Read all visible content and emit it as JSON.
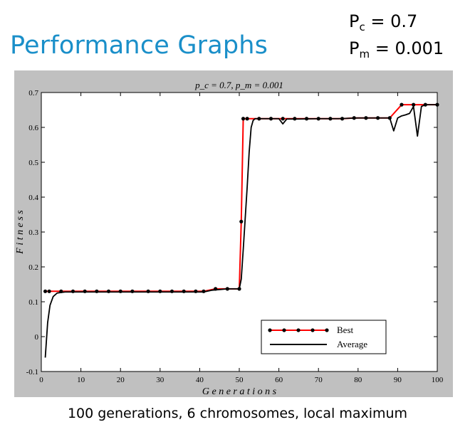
{
  "slide": {
    "title": "Performance Graphs",
    "params": [
      {
        "symbol": "P",
        "sub": "c",
        "rest": " = 0.7"
      },
      {
        "symbol": "P",
        "sub": "m",
        "rest": " = 0.001"
      }
    ],
    "caption": "100 generations, 6 chromosomes, local maximum"
  },
  "chart_data": {
    "type": "line",
    "title": "p_c = 0.7,  p_m = 0.001",
    "xlabel": "G e n e r a t i o n s",
    "ylabel": "F i t n e s s",
    "xlim": [
      0,
      100
    ],
    "ylim": [
      -0.1,
      0.7
    ],
    "xticks": [
      0,
      10,
      20,
      30,
      40,
      50,
      60,
      70,
      80,
      90,
      100
    ],
    "yticks": [
      -0.1,
      0,
      0.1,
      0.2,
      0.3,
      0.4,
      0.5,
      0.6,
      0.7
    ],
    "ytick_labels": [
      "-0.1",
      "0",
      "0.1",
      "0.2",
      "0.3",
      "0.4",
      "0.5",
      "0.6",
      "0.7"
    ],
    "grid": false,
    "legend_position": "bottom-right",
    "series": [
      {
        "name": "Best",
        "color": "#ff0000",
        "marker": "dot",
        "x": [
          1,
          2,
          5,
          8,
          11,
          14,
          17,
          20,
          23,
          27,
          30,
          33,
          36,
          39,
          41,
          44,
          47,
          50,
          50.5,
          51,
          52,
          55,
          58,
          61,
          64,
          67,
          70,
          73,
          76,
          79,
          82,
          85,
          88,
          91,
          94,
          97,
          100
        ],
        "y": [
          0.13,
          0.13,
          0.13,
          0.13,
          0.13,
          0.13,
          0.13,
          0.13,
          0.13,
          0.13,
          0.13,
          0.13,
          0.13,
          0.13,
          0.13,
          0.137,
          0.137,
          0.137,
          0.33,
          0.625,
          0.625,
          0.625,
          0.625,
          0.625,
          0.625,
          0.625,
          0.625,
          0.625,
          0.625,
          0.627,
          0.627,
          0.627,
          0.627,
          0.665,
          0.665,
          0.665,
          0.665
        ]
      },
      {
        "name": "Average",
        "color": "#000000",
        "marker": "none",
        "x": [
          1,
          1.6,
          2.2,
          3,
          4,
          6,
          10,
          20,
          30,
          40,
          41,
          43,
          47,
          50,
          50.5,
          51,
          51.5,
          52,
          52.5,
          53,
          53.5,
          54,
          57,
          60,
          61,
          62,
          65,
          70,
          75,
          80,
          85,
          88,
          89,
          90,
          91,
          92,
          93,
          94,
          95,
          96,
          97,
          100
        ],
        "y": [
          -0.06,
          0.04,
          0.09,
          0.115,
          0.125,
          0.128,
          0.128,
          0.128,
          0.128,
          0.128,
          0.128,
          0.133,
          0.137,
          0.137,
          0.165,
          0.25,
          0.34,
          0.43,
          0.53,
          0.6,
          0.62,
          0.625,
          0.625,
          0.625,
          0.61,
          0.624,
          0.624,
          0.625,
          0.625,
          0.627,
          0.627,
          0.627,
          0.59,
          0.627,
          0.633,
          0.636,
          0.64,
          0.66,
          0.575,
          0.66,
          0.665,
          0.665
        ]
      }
    ]
  }
}
